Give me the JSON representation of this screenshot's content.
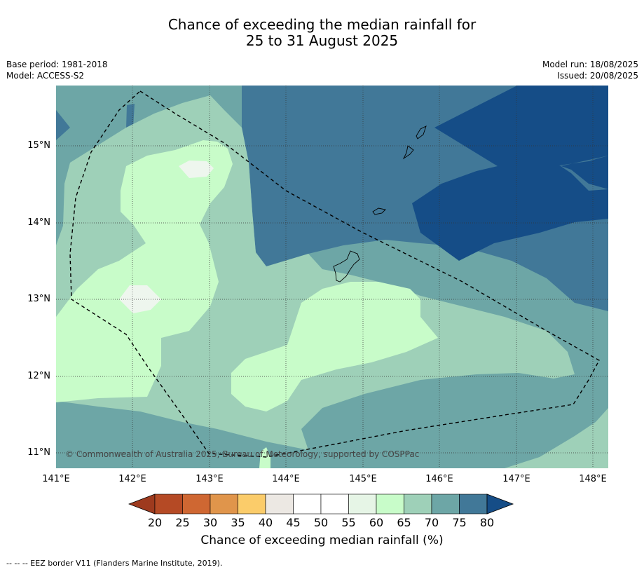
{
  "title_line1": "Chance of exceeding the median rainfall for",
  "title_line2": "25 to 31 August 2025",
  "base_period": "Base period: 1981-2018",
  "model": "Model: ACCESS-S2",
  "model_run": "Model run: 18/08/2025",
  "issued": "Issued: 20/08/2025",
  "lat_labels": [
    "15°N",
    "14°N",
    "13°N",
    "12°N",
    "11°N"
  ],
  "lon_labels": [
    "141°E",
    "142°E",
    "143°E",
    "144°E",
    "145°E",
    "146°E",
    "147°E",
    "148°E"
  ],
  "copyright": "© Commonwealth of Australia 2025, Bureau of Meteorology, supported by COSPPac",
  "colorbar": {
    "title": "Chance of exceeding median rainfall (%)",
    "ticks": [
      "20",
      "25",
      "30",
      "35",
      "40",
      "45",
      "50",
      "55",
      "60",
      "65",
      "70",
      "75",
      "80"
    ],
    "colors": [
      "#9e3a1e",
      "#b54a25",
      "#cf6732",
      "#e0954b",
      "#fbcc6a",
      "#ece8e3",
      "#ffffff",
      "#ffffff",
      "#e6f5e6",
      "#c8fcc9",
      "#9ed0b8",
      "#6da6a6",
      "#417898",
      "#154d87"
    ]
  },
  "footer": "--  --  -- EEZ border V11 (Flanders Marine Institute, 2019)."
}
